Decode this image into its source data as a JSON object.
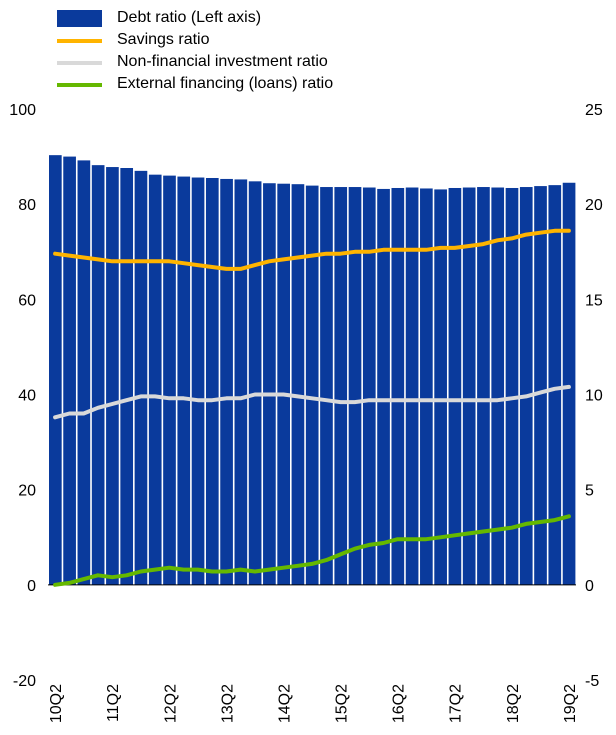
{
  "chart_data": {
    "type": "bar",
    "x": [
      "10Q2",
      "10Q3",
      "10Q4",
      "11Q1",
      "11Q2",
      "11Q3",
      "11Q4",
      "12Q1",
      "12Q2",
      "12Q3",
      "12Q4",
      "13Q1",
      "13Q2",
      "13Q3",
      "13Q4",
      "14Q1",
      "14Q2",
      "14Q3",
      "14Q4",
      "15Q1",
      "15Q2",
      "15Q3",
      "15Q4",
      "16Q1",
      "16Q2",
      "16Q3",
      "16Q4",
      "17Q1",
      "17Q2",
      "17Q3",
      "17Q4",
      "18Q1",
      "18Q2",
      "18Q3",
      "18Q4",
      "19Q1",
      "19Q2"
    ],
    "x_tick_labels": [
      "10Q2",
      "11Q2",
      "12Q2",
      "13Q2",
      "14Q2",
      "15Q2",
      "16Q2",
      "17Q2",
      "18Q2",
      "19Q2"
    ],
    "left_axis": {
      "ylim": [
        -20,
        100
      ],
      "ticks": [
        -20,
        0,
        20,
        40,
        60,
        80,
        100
      ]
    },
    "right_axis": {
      "ylim": [
        -5,
        25
      ],
      "ticks": [
        -5,
        0,
        5,
        10,
        15,
        20,
        25
      ]
    },
    "grid": false,
    "legend_placement": "top-left",
    "series": [
      {
        "name": "Debt ratio (Left axis)",
        "kind": "bar",
        "axis": "left",
        "color": "#0a3a9c",
        "values": [
          90.3,
          90.0,
          89.2,
          88.2,
          87.8,
          87.6,
          87.0,
          86.2,
          86.0,
          85.8,
          85.6,
          85.5,
          85.3,
          85.2,
          84.8,
          84.4,
          84.3,
          84.2,
          83.9,
          83.6,
          83.6,
          83.6,
          83.5,
          83.2,
          83.4,
          83.5,
          83.3,
          83.1,
          83.4,
          83.5,
          83.6,
          83.5,
          83.4,
          83.6,
          83.8,
          84.0,
          84.5
        ]
      },
      {
        "name": "Savings ratio",
        "kind": "line",
        "axis": "right",
        "color": "#ffb400",
        "values": [
          17.4,
          17.3,
          17.2,
          17.1,
          17.0,
          17.0,
          17.0,
          17.0,
          17.0,
          16.9,
          16.8,
          16.7,
          16.6,
          16.6,
          16.8,
          17.0,
          17.1,
          17.2,
          17.3,
          17.4,
          17.4,
          17.5,
          17.5,
          17.6,
          17.6,
          17.6,
          17.6,
          17.7,
          17.7,
          17.8,
          17.9,
          18.1,
          18.2,
          18.4,
          18.5,
          18.6,
          18.6
        ]
      },
      {
        "name": "Non-financial investment ratio",
        "kind": "line",
        "axis": "right",
        "color": "#d9d9d9",
        "values": [
          8.8,
          9.0,
          9.0,
          9.3,
          9.5,
          9.7,
          9.9,
          9.9,
          9.8,
          9.8,
          9.7,
          9.7,
          9.8,
          9.8,
          10.0,
          10.0,
          10.0,
          9.9,
          9.8,
          9.7,
          9.6,
          9.6,
          9.7,
          9.7,
          9.7,
          9.7,
          9.7,
          9.7,
          9.7,
          9.7,
          9.7,
          9.7,
          9.8,
          9.9,
          10.1,
          10.3,
          10.4
        ]
      },
      {
        "name": "External financing (loans) ratio",
        "kind": "line",
        "axis": "right",
        "color": "#65b800",
        "values": [
          0.0,
          0.1,
          0.3,
          0.5,
          0.4,
          0.5,
          0.7,
          0.8,
          0.9,
          0.8,
          0.8,
          0.7,
          0.7,
          0.8,
          0.7,
          0.8,
          0.9,
          1.0,
          1.1,
          1.3,
          1.6,
          1.9,
          2.1,
          2.2,
          2.4,
          2.4,
          2.4,
          2.5,
          2.6,
          2.7,
          2.8,
          2.9,
          3.0,
          3.2,
          3.3,
          3.4,
          3.6
        ]
      }
    ]
  }
}
